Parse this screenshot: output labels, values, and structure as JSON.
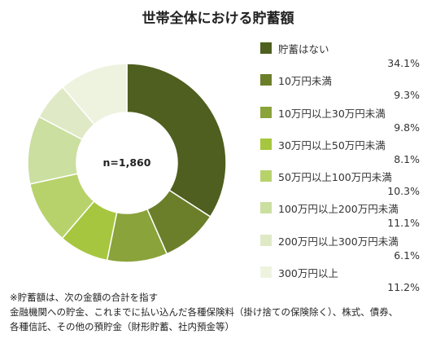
{
  "chart_data": {
    "type": "pie",
    "title": "世帯全体における貯蓄額",
    "center_label": "n=1,860",
    "categories": [
      "貯蓄はない",
      "10万円未満",
      "10万円以上30万円未満",
      "30万円以上50万円未満",
      "50万円以上100万円未満",
      "100万円以上200万円未満",
      "200万円以上300万円未満",
      "300万円以上"
    ],
    "values": [
      34.1,
      9.3,
      9.8,
      8.1,
      10.3,
      11.1,
      6.1,
      11.2
    ],
    "value_labels": [
      "34.1%",
      "9.3%",
      "9.8%",
      "8.1%",
      "10.3%",
      "11.1%",
      "6.1%",
      "11.2%"
    ],
    "colors": [
      "#4e5f1f",
      "#6b7f2a",
      "#8aa33a",
      "#a6c63f",
      "#b8d26b",
      "#cadfa0",
      "#dfe9c6",
      "#eef3e0"
    ],
    "legend_position": "right"
  },
  "notes": [
    "※貯蓄額は、次の金額の合計を指す",
    "金融機関への貯金、これまでに払い込んだ各種保険料（掛け捨ての保険除く）、株式、債券、",
    "各種信託、その他の預貯金（財形貯蓄、社内預金等）"
  ]
}
